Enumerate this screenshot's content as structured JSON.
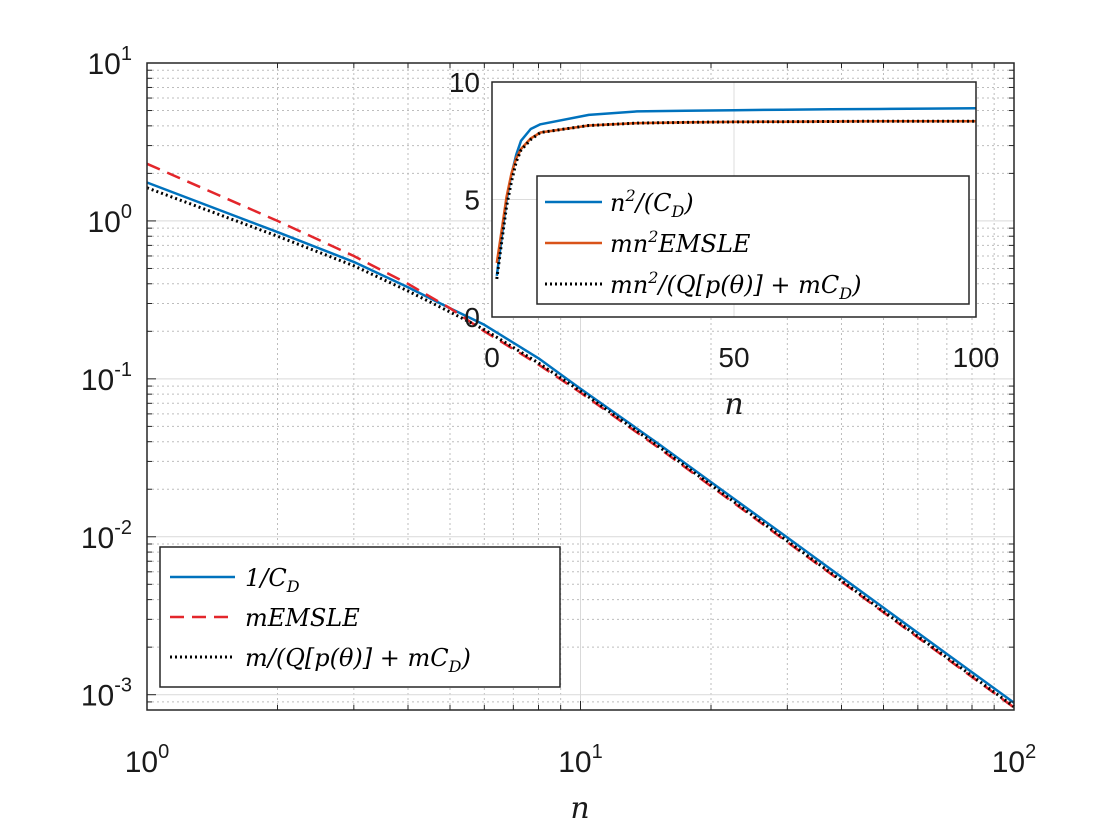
{
  "chart_data": [
    {
      "type": "line",
      "x_scale": "log",
      "y_scale": "log",
      "xlim": [
        1,
        100
      ],
      "ylim": [
        0.0008,
        10
      ],
      "xlabel": "n",
      "ylabel": "",
      "grid": true,
      "minor_grid": true,
      "legend_position": "bottom-left",
      "x_ticks": [
        {
          "value": 1,
          "base": "10",
          "exp": "0"
        },
        {
          "value": 10,
          "base": "10",
          "exp": "1"
        },
        {
          "value": 100,
          "base": "10",
          "exp": "2"
        }
      ],
      "y_ticks": [
        {
          "value": 0.001,
          "base": "10",
          "exp": "-3"
        },
        {
          "value": 0.01,
          "base": "10",
          "exp": "-2"
        },
        {
          "value": 0.1,
          "base": "10",
          "exp": "-1"
        },
        {
          "value": 1,
          "base": "10",
          "exp": "0"
        },
        {
          "value": 10,
          "base": "10",
          "exp": "1"
        }
      ],
      "x": [
        1,
        2,
        3,
        4,
        5,
        6,
        8,
        10,
        15,
        20,
        30,
        50,
        70,
        100
      ],
      "series": [
        {
          "name": "1/C_D",
          "legend_label": "1/C",
          "legend_sub": "D",
          "color": "#0072bd",
          "dash": "solid",
          "values": [
            1.75,
            0.85,
            0.55,
            0.38,
            0.28,
            0.22,
            0.135,
            0.0865,
            0.0395,
            0.0222,
            0.0099,
            0.00355,
            0.00181,
            0.00089
          ]
        },
        {
          "name": "mEMSLE",
          "legend_label": "mEMSLE",
          "color": "#e3262b",
          "dash": "dashed",
          "values": [
            2.3,
            1.0,
            0.6,
            0.4,
            0.28,
            0.2,
            0.123,
            0.0818,
            0.0373,
            0.0209,
            0.00925,
            0.00332,
            0.00169,
            0.00083
          ]
        },
        {
          "name": "m/(Q[p(θ)] + mC_D)",
          "legend_label": "m/(Q[p(θ)] + mC",
          "legend_sub": "D",
          "legend_tail": ")",
          "color": "#000000",
          "dash": "dotted",
          "values": [
            1.62,
            0.8,
            0.52,
            0.36,
            0.265,
            0.205,
            0.126,
            0.0835,
            0.038,
            0.0213,
            0.0094,
            0.00337,
            0.00172,
            0.00084
          ]
        }
      ]
    },
    {
      "type": "line",
      "position": "inset",
      "xlim": [
        0,
        100
      ],
      "ylim": [
        0,
        10
      ],
      "xlabel": "n",
      "ylabel": "",
      "grid": true,
      "legend_position": "center",
      "x_ticks": [
        "0",
        "50",
        "100"
      ],
      "y_ticks": [
        "0",
        "5",
        "10"
      ],
      "x": [
        1,
        2,
        3,
        4,
        5,
        6,
        8,
        10,
        20,
        30,
        40,
        50,
        60,
        70,
        80,
        90,
        100
      ],
      "series": [
        {
          "name": "n^2/(C_D)",
          "legend_label": "n",
          "legend_sup": "2",
          "legend_mid": "/(C",
          "legend_sub": "D",
          "legend_tail": ")",
          "color": "#0072bd",
          "dash": "solid",
          "values": [
            1.75,
            3.4,
            4.95,
            6.05,
            6.9,
            7.5,
            8.0,
            8.2,
            8.6,
            8.75,
            8.78,
            8.8,
            8.82,
            8.84,
            8.85,
            8.87,
            8.88
          ]
        },
        {
          "name": "mn^2EMSLE",
          "legend_label": "mn",
          "legend_sup": "2",
          "legend_mid": "EMSLE",
          "color": "#d95319",
          "dash": "solid",
          "values": [
            2.3,
            3.7,
            5.1,
            6.1,
            6.75,
            7.15,
            7.6,
            7.85,
            8.15,
            8.25,
            8.28,
            8.3,
            8.31,
            8.32,
            8.33,
            8.33,
            8.33
          ]
        },
        {
          "name": "mn^2/(Q[p(θ)] + mC_D)",
          "legend_label": "mn",
          "legend_sup": "2",
          "legend_mid": "/(Q[p(θ)] + mC",
          "legend_sub": "D",
          "legend_tail": ")",
          "color": "#000000",
          "dash": "dotted",
          "values": [
            1.62,
            3.2,
            4.7,
            5.75,
            6.6,
            7.1,
            7.55,
            7.85,
            8.15,
            8.25,
            8.28,
            8.3,
            8.31,
            8.32,
            8.33,
            8.33,
            8.33
          ]
        }
      ]
    }
  ]
}
